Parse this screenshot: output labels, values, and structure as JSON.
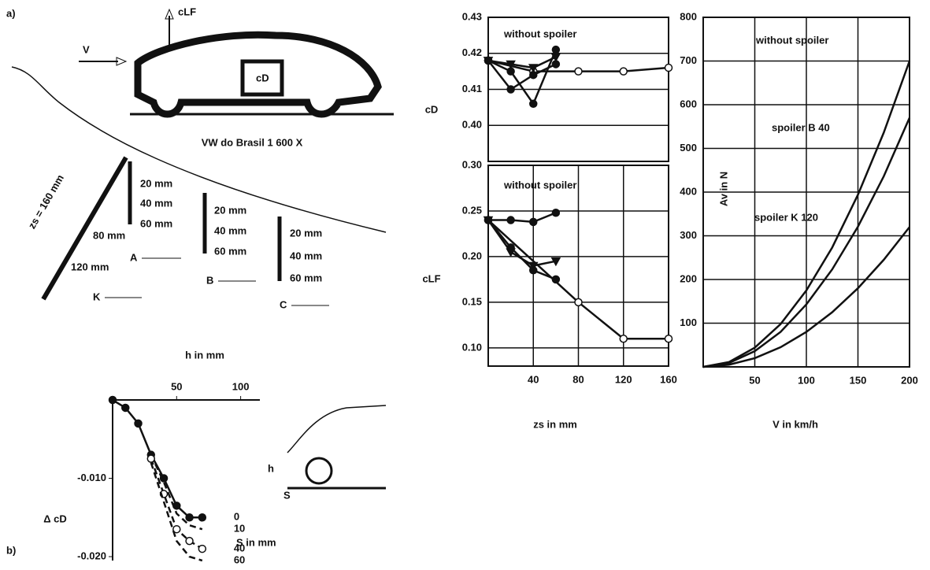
{
  "diagram": {
    "panel_a": "a)",
    "panel_b": "b)",
    "velocity": "V",
    "lift": "cLF",
    "drag": "cD",
    "car": "VW do Brasil 1 600 X",
    "zs": "zs = 160 mm",
    "depths_1": [
      "20 mm",
      "40 mm",
      "60 mm"
    ],
    "depths_2": [
      "20 mm",
      "40 mm",
      "60 mm"
    ],
    "depths_3": [
      "20 mm",
      "40 mm",
      "60 mm"
    ],
    "k_depths": [
      "80 mm",
      "120 mm"
    ],
    "legend": [
      "A",
      "B",
      "C",
      "K"
    ],
    "h": "h",
    "s": "S"
  },
  "chart_data": [
    {
      "type": "line",
      "ylabel": "cD",
      "xlim": [
        0,
        160
      ],
      "ylim": [
        0.39,
        0.43
      ],
      "yticks": [
        {
          "value": 0.4,
          "label": "0.40"
        },
        0.41,
        0.42,
        0.43
      ],
      "grid": true,
      "color": "#111111",
      "series": [
        {
          "name": "without spoiler",
          "marker": "circle-open",
          "x": [
            0,
            40,
            80,
            120,
            160
          ],
          "values": [
            0.418,
            0.415,
            0.415,
            0.415,
            0.416
          ]
        },
        {
          "marker": "triangle",
          "x": [
            0,
            20,
            40,
            60
          ],
          "values": [
            0.418,
            0.417,
            0.416,
            0.419
          ]
        },
        {
          "marker": "circle",
          "x": [
            0,
            20,
            40,
            60
          ],
          "values": [
            0.418,
            0.41,
            0.414,
            0.417
          ]
        },
        {
          "marker": "circle",
          "x": [
            0,
            20,
            40,
            60
          ],
          "values": [
            0.418,
            0.415,
            0.406,
            0.421
          ]
        }
      ]
    },
    {
      "type": "line",
      "ylabel": "cLF",
      "xlabel": "zs in mm",
      "xlim": [
        0,
        160
      ],
      "ylim": [
        0.08,
        0.3
      ],
      "xticks": [
        40,
        80,
        120,
        160
      ],
      "yticks": [
        {
          "value": 0.1,
          "label": "0.10"
        },
        0.15,
        {
          "value": 0.2,
          "label": "0.20"
        },
        0.25,
        {
          "value": 0.3,
          "label": "0.30"
        }
      ],
      "grid": true,
      "color": "#111111",
      "series": [
        {
          "name": "without spoiler",
          "marker": "circle-open",
          "x": [
            0,
            80,
            120,
            160
          ],
          "values": [
            0.24,
            0.15,
            0.11,
            0.11
          ]
        },
        {
          "marker": "circle",
          "x": [
            0,
            20,
            40,
            60
          ],
          "values": [
            0.24,
            0.24,
            0.238,
            0.248
          ]
        },
        {
          "marker": "triangle",
          "x": [
            0,
            20,
            40,
            60
          ],
          "values": [
            0.24,
            0.205,
            0.19,
            0.195
          ]
        },
        {
          "marker": "circle",
          "x": [
            0,
            20,
            40,
            60
          ],
          "values": [
            0.24,
            0.21,
            0.185,
            0.175
          ]
        }
      ]
    },
    {
      "type": "line",
      "ylabel": "Av in N",
      "xlabel": "V in km/h",
      "xlim": [
        0,
        200
      ],
      "ylim": [
        0,
        800
      ],
      "xticks": [
        50,
        100,
        150,
        200
      ],
      "yticks": [
        100,
        200,
        300,
        400,
        500,
        600,
        700,
        800
      ],
      "grid": true,
      "color": "#111111",
      "series": [
        {
          "name": "without spoiler",
          "x": [
            0,
            25,
            50,
            75,
            100,
            125,
            150,
            175,
            200
          ],
          "values": [
            0,
            11,
            44,
            98,
            175,
            273,
            394,
            536,
            700
          ]
        },
        {
          "name": "spoiler B 40",
          "x": [
            0,
            25,
            50,
            75,
            100,
            125,
            150,
            175,
            200
          ],
          "values": [
            0,
            9,
            36,
            80,
            143,
            223,
            321,
            436,
            570
          ]
        },
        {
          "name": "spoiler K 120",
          "x": [
            0,
            25,
            50,
            75,
            100,
            125,
            150,
            175,
            200
          ],
          "values": [
            0,
            5,
            20,
            45,
            80,
            125,
            180,
            245,
            320
          ]
        }
      ]
    },
    {
      "type": "line",
      "ylabel": "Δ cD",
      "xlabel": "h in mm",
      "annotation": "S in mm",
      "xlim": [
        0,
        115
      ],
      "ylim": [
        -0.0205,
        0
      ],
      "xticks": [
        50,
        100
      ],
      "yticks": [
        {
          "value": -0.01,
          "label": "-0.010"
        },
        {
          "value": -0.02,
          "label": "-0.020"
        }
      ],
      "grid": false,
      "color": "#111111",
      "series": [
        {
          "name": "0",
          "marker": "circle",
          "x": [
            0,
            10,
            20,
            30,
            40,
            50,
            60,
            70
          ],
          "values": [
            0,
            -0.001,
            -0.003,
            -0.007,
            -0.01,
            -0.0135,
            -0.015,
            -0.015
          ]
        },
        {
          "name": "10",
          "dash": true,
          "x": [
            30,
            40,
            50,
            60,
            70
          ],
          "values": [
            -0.007,
            -0.0105,
            -0.0145,
            -0.016,
            -0.0165
          ]
        },
        {
          "name": "40",
          "dash": true,
          "marker": "circle-open",
          "x": [
            30,
            40,
            50,
            60,
            70
          ],
          "values": [
            -0.0075,
            -0.012,
            -0.0165,
            -0.018,
            -0.019
          ]
        },
        {
          "name": "60",
          "dash": true,
          "x": [
            30,
            40,
            50,
            60,
            70
          ],
          "values": [
            -0.008,
            -0.013,
            -0.018,
            -0.02,
            -0.0205
          ]
        }
      ]
    }
  ]
}
